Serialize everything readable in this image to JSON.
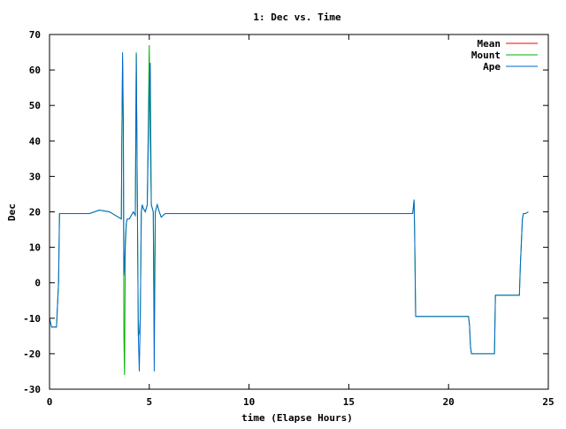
{
  "chart_data": {
    "type": "line",
    "title": "1: Dec vs. Time",
    "xlabel": "time (Elapse Hours)",
    "ylabel": "Dec",
    "xlim": [
      0,
      25
    ],
    "ylim": [
      -30,
      70
    ],
    "xticks": [
      0,
      5,
      10,
      15,
      20,
      25
    ],
    "yticks": [
      -30,
      -20,
      -10,
      0,
      10,
      20,
      30,
      40,
      50,
      60,
      70
    ],
    "grid": false,
    "legend_position": "top-right",
    "series": [
      {
        "name": "Mean",
        "color": "#ff0000",
        "x": [],
        "y": []
      },
      {
        "name": "Mount",
        "color": "#00b000",
        "x": [
          0.0,
          0.1,
          0.35,
          0.45,
          0.5,
          2.0,
          2.5,
          3.0,
          3.6,
          3.62,
          3.66,
          3.7,
          3.73,
          3.76,
          3.8,
          3.85,
          3.9,
          4.0,
          4.2,
          4.3,
          4.35,
          4.45,
          4.5,
          4.55,
          4.6,
          4.65,
          4.7,
          4.8,
          4.9,
          5.0,
          5.05,
          5.1,
          5.2,
          5.25,
          5.3,
          5.4,
          5.5,
          5.6,
          5.8,
          6.0,
          8.0,
          10.0,
          12.0,
          14.0,
          16.0,
          18.2,
          18.27,
          18.3,
          18.35,
          19.0,
          20.0,
          21.0,
          21.05,
          21.1,
          21.15,
          21.2,
          22.0,
          22.3,
          22.35,
          23.0,
          23.5,
          23.55,
          23.6,
          23.7,
          23.75,
          23.8,
          23.85,
          24.0
        ],
        "y": [
          -10,
          -12.5,
          -12.5,
          0,
          19.5,
          19.5,
          20.5,
          20,
          18,
          38,
          63,
          40,
          -15,
          -26,
          10,
          17,
          18,
          18,
          20,
          19,
          65,
          -15,
          -14,
          -10,
          20,
          22,
          21,
          20,
          22,
          67,
          40,
          22,
          20,
          -14,
          20,
          22,
          20,
          18.5,
          19.5,
          19.5,
          19.5,
          19.5,
          19.5,
          19.5,
          19.5,
          19.5,
          23,
          15,
          -9.5,
          -9.5,
          -9.5,
          -9.5,
          -12,
          -18,
          -20,
          -20,
          -20,
          -20,
          -3.5,
          -3.5,
          -3.5,
          -3.5,
          5,
          18,
          19.5,
          19.5,
          19.5,
          20
        ]
      },
      {
        "name": "Ape",
        "color": "#0066cc",
        "x": [
          0.0,
          0.1,
          0.35,
          0.45,
          0.5,
          2.0,
          2.5,
          3.0,
          3.6,
          3.62,
          3.66,
          3.7,
          3.73,
          3.76,
          3.8,
          3.85,
          3.9,
          4.0,
          4.2,
          4.3,
          4.35,
          4.45,
          4.5,
          4.55,
          4.6,
          4.65,
          4.7,
          4.8,
          4.9,
          5.0,
          5.05,
          5.1,
          5.2,
          5.25,
          5.3,
          5.4,
          5.5,
          5.6,
          5.8,
          6.0,
          8.0,
          10.0,
          12.0,
          14.0,
          16.0,
          18.2,
          18.27,
          18.3,
          18.35,
          19.0,
          20.0,
          21.0,
          21.05,
          21.1,
          21.15,
          21.2,
          22.0,
          22.3,
          22.35,
          23.0,
          23.5,
          23.55,
          23.6,
          23.7,
          23.75,
          23.8,
          23.85,
          24.0
        ],
        "y": [
          -10,
          -12.5,
          -12.5,
          0,
          19.5,
          19.5,
          20.5,
          20,
          18,
          38,
          65,
          45,
          2,
          5,
          12,
          17,
          18,
          18,
          20,
          19,
          64.5,
          -15,
          -25,
          -10,
          20,
          22,
          21,
          20,
          22,
          55,
          62,
          22,
          20,
          -25,
          20,
          22,
          20,
          18.5,
          19.5,
          19.5,
          19.5,
          19.5,
          19.5,
          19.5,
          19.5,
          19.5,
          23.5,
          15,
          -9.5,
          -9.5,
          -9.5,
          -9.5,
          -12,
          -18,
          -20,
          -20,
          -20,
          -20,
          -3.5,
          -3.5,
          -3.5,
          -3.5,
          5,
          18,
          19.5,
          19.5,
          19.5,
          20
        ]
      }
    ]
  }
}
